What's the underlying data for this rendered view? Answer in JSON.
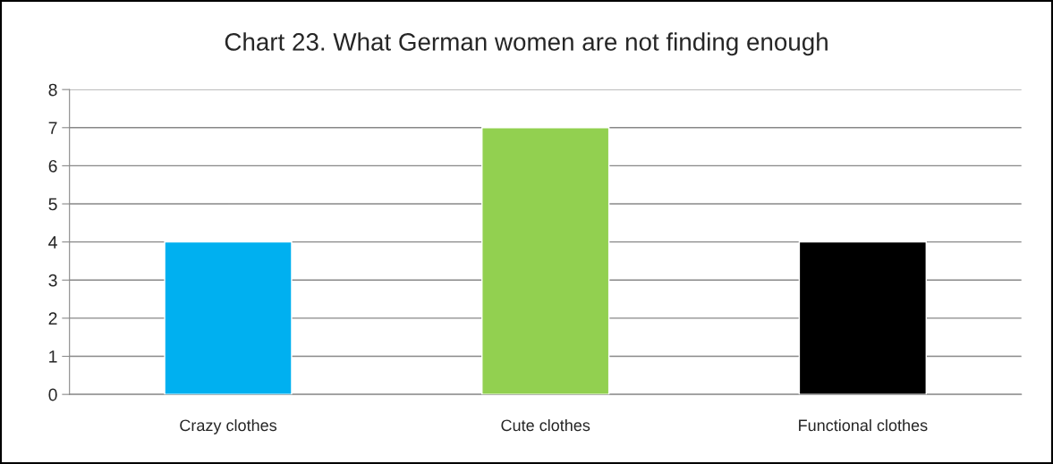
{
  "chart_data": {
    "type": "bar",
    "title": "Chart 23. What German women are not finding enough",
    "categories": [
      "Crazy clothes",
      "Cute clothes",
      "Functional clothes"
    ],
    "values": [
      4,
      7,
      4
    ],
    "colors": [
      "#00b0f0",
      "#92d050",
      "#000000"
    ],
    "ylim": [
      0,
      8
    ],
    "yticks": [
      0,
      1,
      2,
      3,
      4,
      5,
      6,
      7,
      8
    ],
    "grid": "y",
    "legend": false
  }
}
